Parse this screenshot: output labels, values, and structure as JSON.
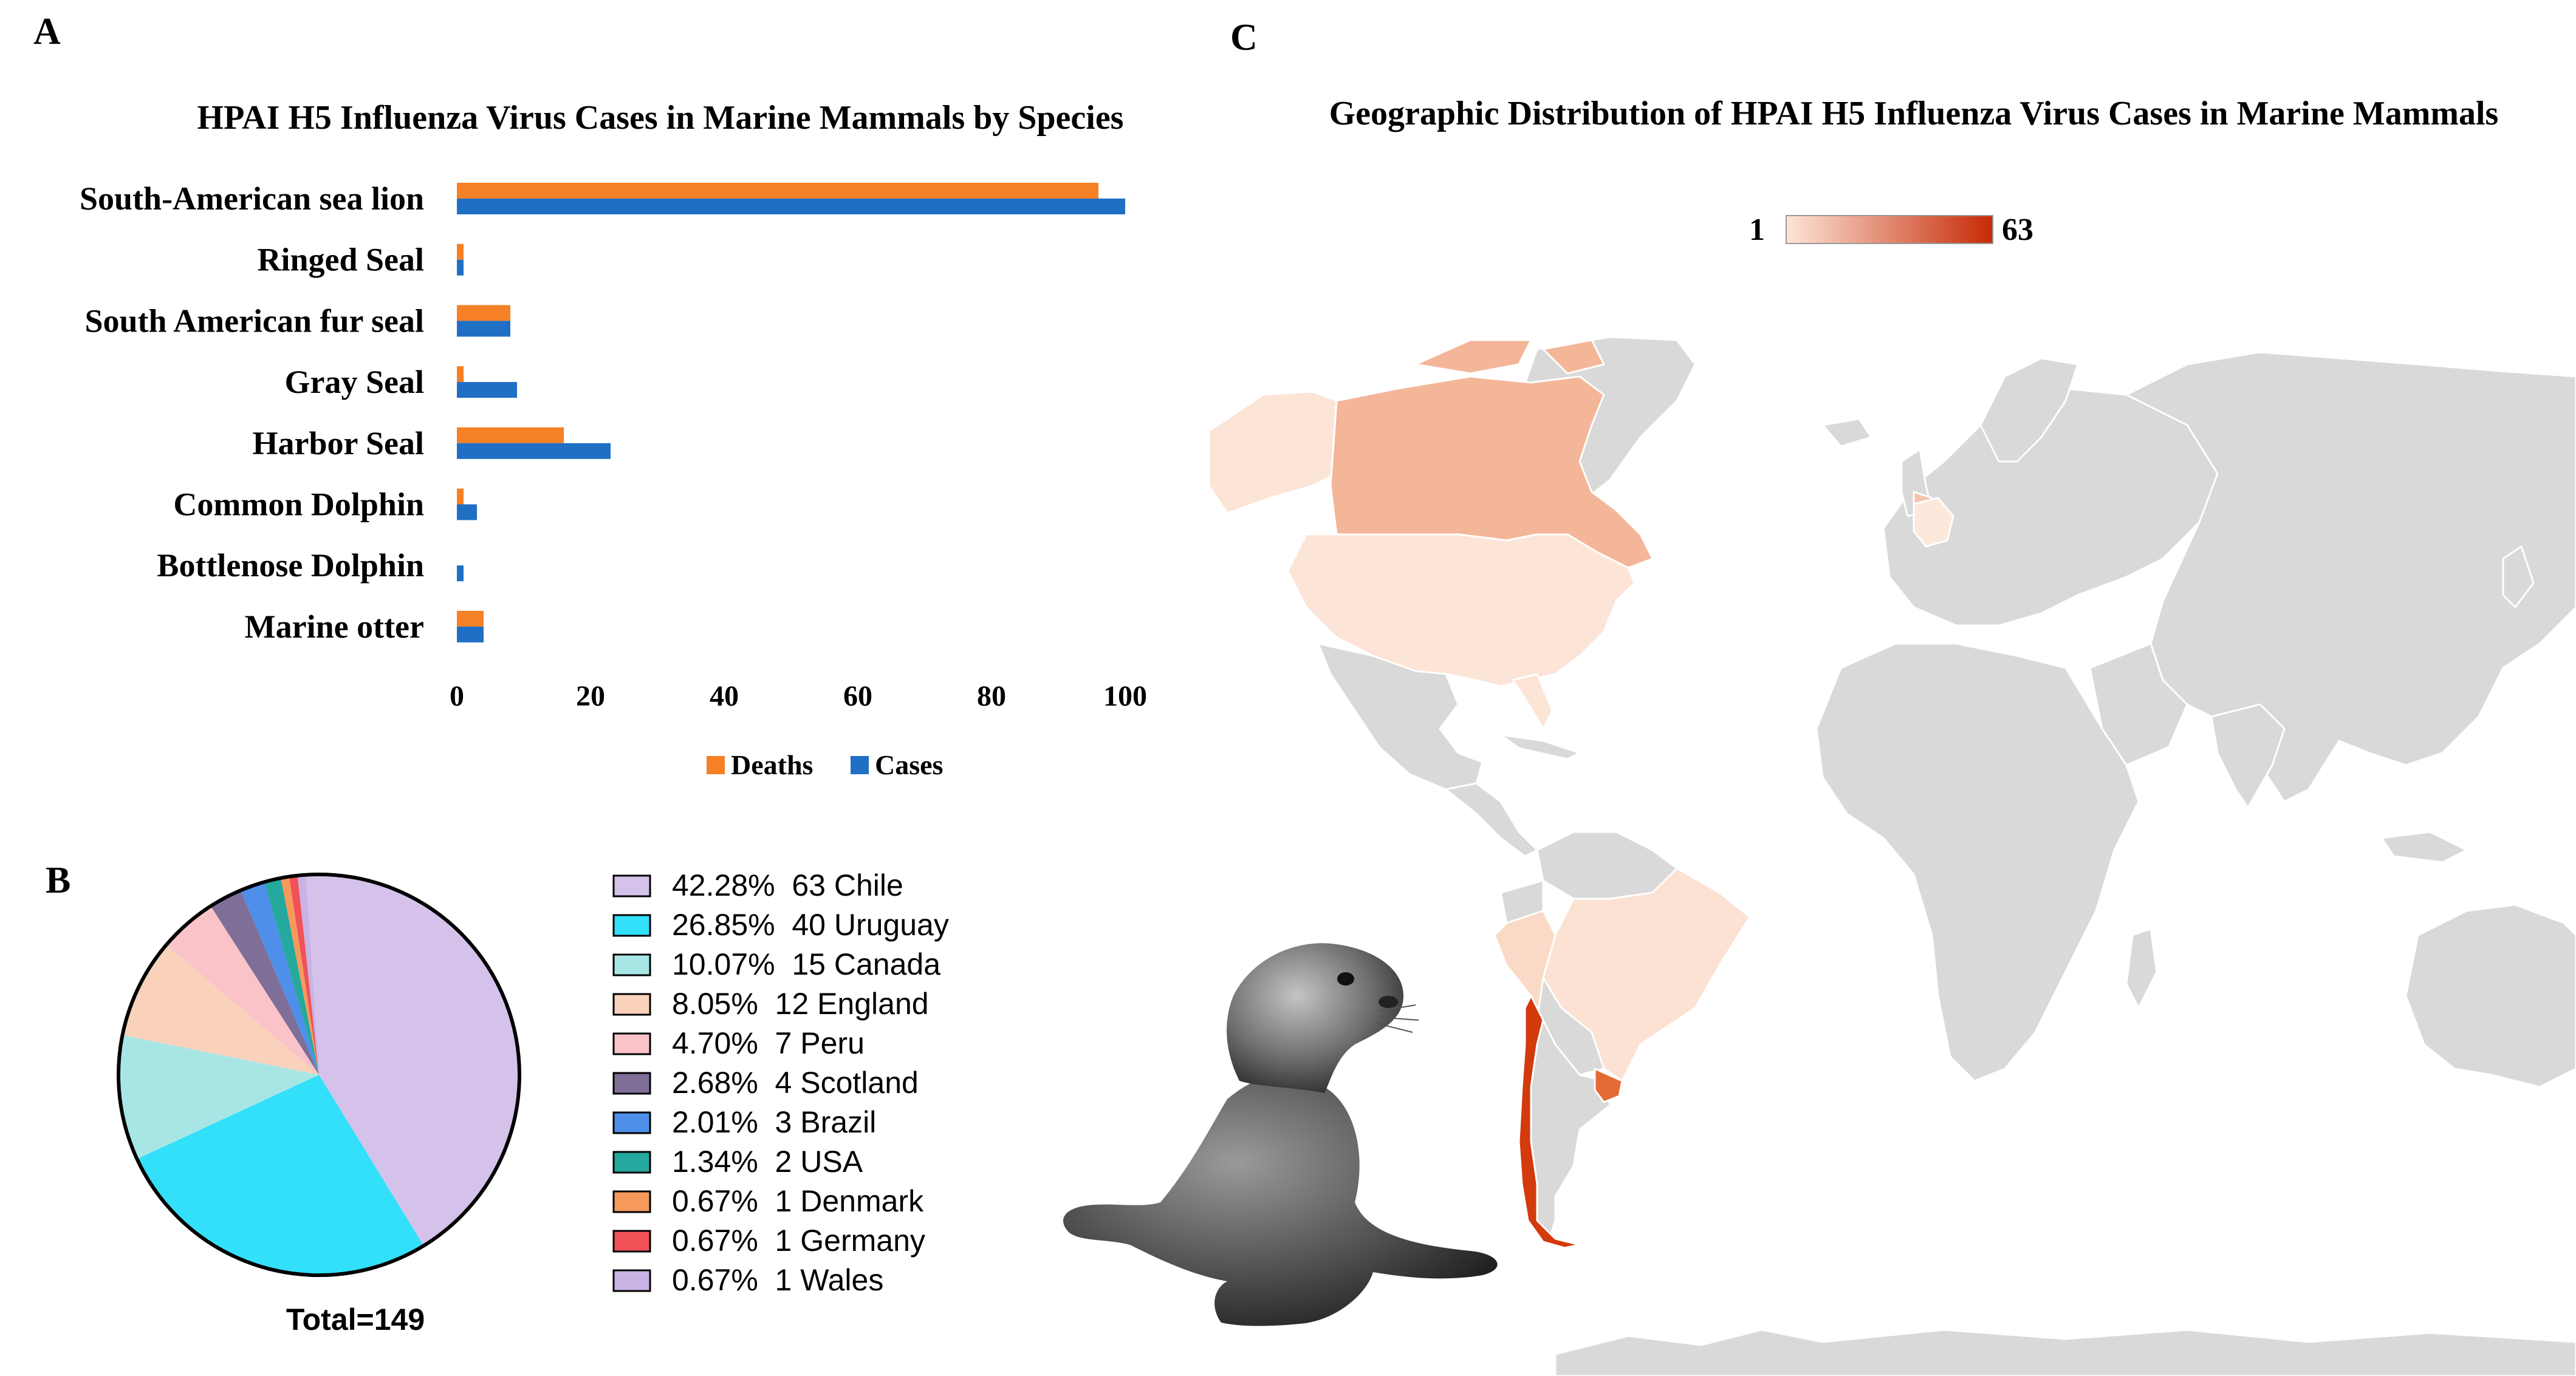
{
  "panel_letters": {
    "a": "A",
    "b": "B",
    "c": "C"
  },
  "chart_data": [
    {
      "type": "bar",
      "orientation": "horizontal",
      "title": "HPAI H5 Influenza Virus Cases in Marine Mammals by Species",
      "categories": [
        "South-American sea lion",
        "Ringed Seal",
        "South American fur seal",
        "Gray Seal",
        "Harbor Seal",
        "Common Dolphin",
        "Bottlenose Dolphin",
        "Marine otter"
      ],
      "series": [
        {
          "name": "Deaths",
          "color": "#F58025",
          "values": [
            96,
            1,
            8,
            1,
            16,
            1,
            0,
            4
          ]
        },
        {
          "name": "Cases",
          "color": "#1F6FC5",
          "values": [
            100,
            1,
            8,
            9,
            23,
            3,
            1,
            4
          ]
        }
      ],
      "xticks": [
        "0",
        "20",
        "40",
        "60",
        "80",
        "100"
      ],
      "xlim": [
        0,
        100
      ],
      "legend_position": "bottom"
    },
    {
      "type": "pie",
      "total_label": "Total=149",
      "slices": [
        {
          "pct": "42.28%",
          "count": "63",
          "label": "Chile",
          "value": 42.28,
          "color": "#D4C2EA"
        },
        {
          "pct": "26.85%",
          "count": "40",
          "label": "Uruguay",
          "value": 26.85,
          "color": "#33E0FA"
        },
        {
          "pct": "10.07%",
          "count": "15",
          "label": "Canada",
          "value": 10.07,
          "color": "#A8E6E6"
        },
        {
          "pct": "8.05%",
          "count": "12",
          "label": "England",
          "value": 8.05,
          "color": "#FAD2BC"
        },
        {
          "pct": "4.70%",
          "count": "7",
          "label": "Peru",
          "value": 4.7,
          "color": "#FAC3C8"
        },
        {
          "pct": "2.68%",
          "count": "4",
          "label": "Scotland",
          "value": 2.68,
          "color": "#7E6E98"
        },
        {
          "pct": "2.01%",
          "count": "3",
          "label": "Brazil",
          "value": 2.01,
          "color": "#4E8FEA"
        },
        {
          "pct": "1.34%",
          "count": "2",
          "label": "USA",
          "value": 1.34,
          "color": "#25A89E"
        },
        {
          "pct": "0.67%",
          "count": "1",
          "label": "Denmark",
          "value": 0.67,
          "color": "#F59A5B"
        },
        {
          "pct": "0.67%",
          "count": "1",
          "label": "Germany",
          "value": 0.67,
          "color": "#F05258"
        },
        {
          "pct": "0.67%",
          "count": "1",
          "label": "Wales",
          "value": 0.67,
          "color": "#C9B2E4"
        }
      ]
    },
    {
      "type": "choropleth",
      "title": "Geographic Distribution of HPAI H5 Influenza Virus Cases in Marine Mammals",
      "scale_min": "1",
      "scale_max": "63",
      "scale_colors": [
        "#FDE5D8",
        "#C62A06"
      ],
      "base_color": "#D9D9D9",
      "regions": [
        {
          "name": "Chile",
          "value": 63,
          "color": "#D33A0C"
        },
        {
          "name": "Uruguay",
          "value": 40,
          "color": "#E46A33"
        },
        {
          "name": "Canada",
          "value": 15,
          "color": "#F4B699"
        },
        {
          "name": "England",
          "value": 12,
          "color": "#F6C4AC"
        },
        {
          "name": "Peru",
          "value": 7,
          "color": "#FAD9C6"
        },
        {
          "name": "Brazil",
          "value": 3,
          "color": "#FCE2D2"
        },
        {
          "name": "USA",
          "value": 2,
          "color": "#FCE4D6"
        },
        {
          "name": "Germany",
          "value": 1,
          "color": "#FDE8DC"
        },
        {
          "name": "Alaska",
          "value": 2,
          "color": "#FCE4D6"
        }
      ]
    }
  ]
}
